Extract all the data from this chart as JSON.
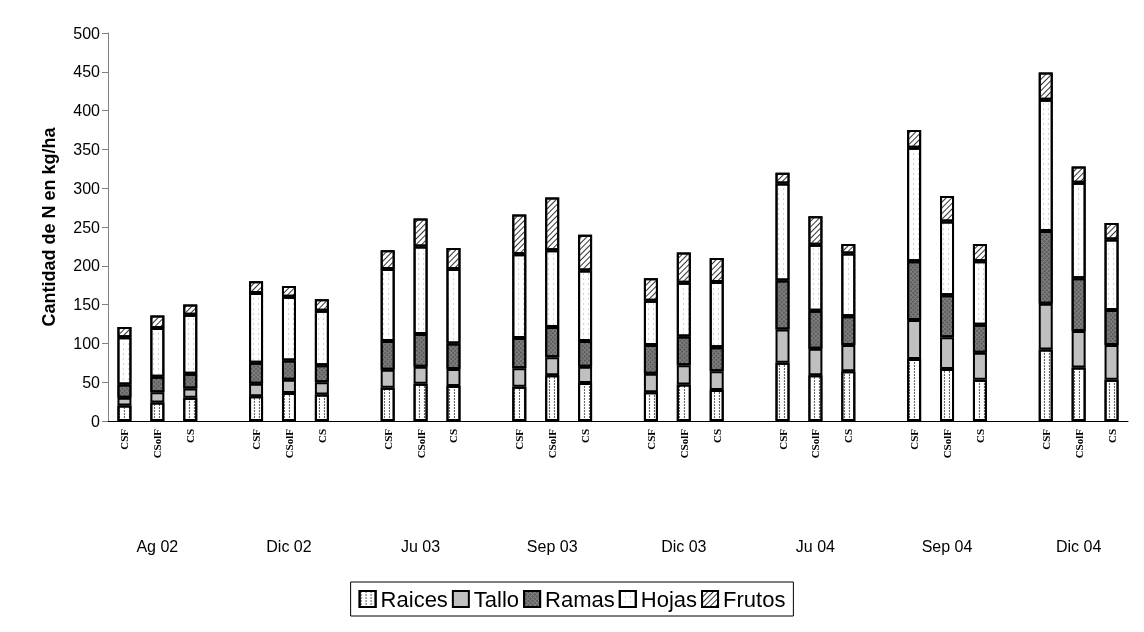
{
  "chart_data": {
    "type": "bar",
    "stacked": true,
    "ylabel": "Cantidad de N en kg/ha",
    "categories": [
      "CSF",
      "CSolF",
      "CS",
      null,
      "CSF",
      "CSolF",
      "CS",
      null,
      "CSF",
      "CSolF",
      "CS",
      null,
      "CSF",
      "CSolF",
      "CS",
      null,
      "CSF",
      "CSolF",
      "CS",
      null,
      "CSF",
      "CSolF",
      "CS",
      null,
      "CSF",
      "CSolF",
      "CS",
      null,
      "CSF",
      "CSolF",
      "CS"
    ],
    "series": [
      {
        "name": "Raices",
        "color": "#ffffff",
        "values": [
          20,
          24,
          30,
          null,
          32,
          36,
          34,
          null,
          43,
          48,
          45,
          null,
          44,
          59,
          49,
          null,
          37,
          47,
          40,
          null,
          75,
          59,
          64,
          null,
          80,
          67,
          53,
          null,
          92,
          69,
          53
        ]
      },
      {
        "name": "Tallo",
        "color": "#c0c0c0",
        "values": [
          10,
          13,
          12,
          null,
          16,
          17,
          16,
          null,
          23,
          22,
          22,
          null,
          24,
          23,
          21,
          null,
          24,
          25,
          24,
          null,
          43,
          34,
          34,
          null,
          50,
          41,
          35,
          null,
          59,
          47,
          45
        ]
      },
      {
        "name": "Ramas",
        "color": "#808080",
        "values": [
          17,
          20,
          19,
          null,
          27,
          25,
          22,
          null,
          37,
          42,
          33,
          null,
          39,
          39,
          33,
          null,
          37,
          37,
          31,
          null,
          63,
          49,
          37,
          null,
          76,
          54,
          36,
          null,
          94,
          68,
          45
        ]
      },
      {
        "name": "Hojas",
        "color": "#ffffff",
        "values": [
          61,
          63,
          76,
          null,
          90,
          82,
          70,
          null,
          93,
          113,
          96,
          null,
          108,
          99,
          91,
          null,
          57,
          69,
          84,
          null,
          125,
          85,
          81,
          null,
          146,
          95,
          82,
          null,
          169,
          123,
          91
        ]
      },
      {
        "name": "Frutos",
        "color": "#ffffff",
        "values": [
          13,
          16,
          13,
          null,
          15,
          14,
          15,
          null,
          24,
          36,
          27,
          null,
          51,
          68,
          46,
          null,
          29,
          39,
          31,
          null,
          14,
          37,
          12,
          null,
          23,
          33,
          22,
          null,
          35,
          21,
          21
        ]
      }
    ],
    "annotations": [
      "Ag 02",
      "Dic 02",
      "Ju 03",
      "Sep 03",
      "Dic 03",
      "Ju 04",
      "Sep 04",
      "Dic 04"
    ],
    "ylim": [
      0,
      500
    ],
    "yticks": [
      0,
      50,
      100,
      150,
      200,
      250,
      300,
      350,
      400,
      450,
      500
    ],
    "grid": false,
    "legend": "bottom"
  }
}
